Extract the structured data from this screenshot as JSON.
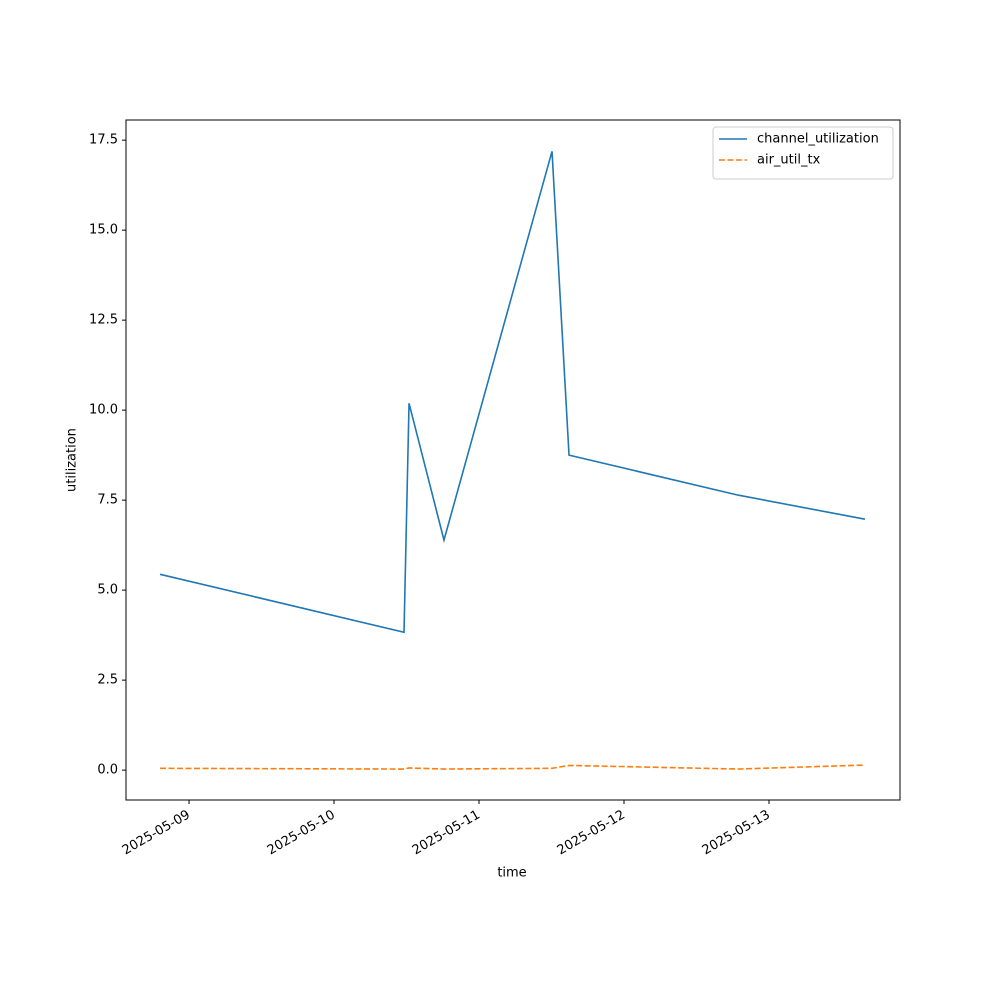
{
  "chart_data": {
    "type": "line",
    "x_label": "time",
    "y_label": "utilization",
    "x": [
      "2025-05-08 19:12",
      "2025-05-10 11:35",
      "2025-05-10 12:25",
      "2025-05-10 18:12",
      "2025-05-11 12:05",
      "2025-05-11 14:54",
      "2025-05-12 18:52",
      "2025-05-13 15:53"
    ],
    "series": [
      {
        "name": "channel_utilization",
        "color": "#1f77b4",
        "linestyle": "solid",
        "values": [
          5.44,
          3.83,
          10.19,
          6.39,
          17.19,
          8.75,
          7.64,
          6.97
        ]
      },
      {
        "name": "air_util_tx",
        "color": "#ff7f0e",
        "linestyle": "dashed",
        "values": [
          0.05,
          0.03,
          0.06,
          0.03,
          0.05,
          0.13,
          0.03,
          0.14
        ]
      }
    ],
    "xlim": [
      "2025-05-08 13:34",
      "2025-05-13 21:41"
    ],
    "xticks": [
      "2025-05-09",
      "2025-05-10",
      "2025-05-11",
      "2025-05-12",
      "2025-05-13"
    ],
    "ylim": [
      -0.83,
      18.06
    ],
    "yticks": [
      {
        "value": 0,
        "label": "0.0"
      },
      2.5,
      {
        "value": 5,
        "label": "5.0"
      },
      7.5,
      {
        "value": 10,
        "label": "10.0"
      },
      12.5,
      {
        "value": 15,
        "label": "15.0"
      },
      17.5
    ],
    "legend": "upper right"
  }
}
